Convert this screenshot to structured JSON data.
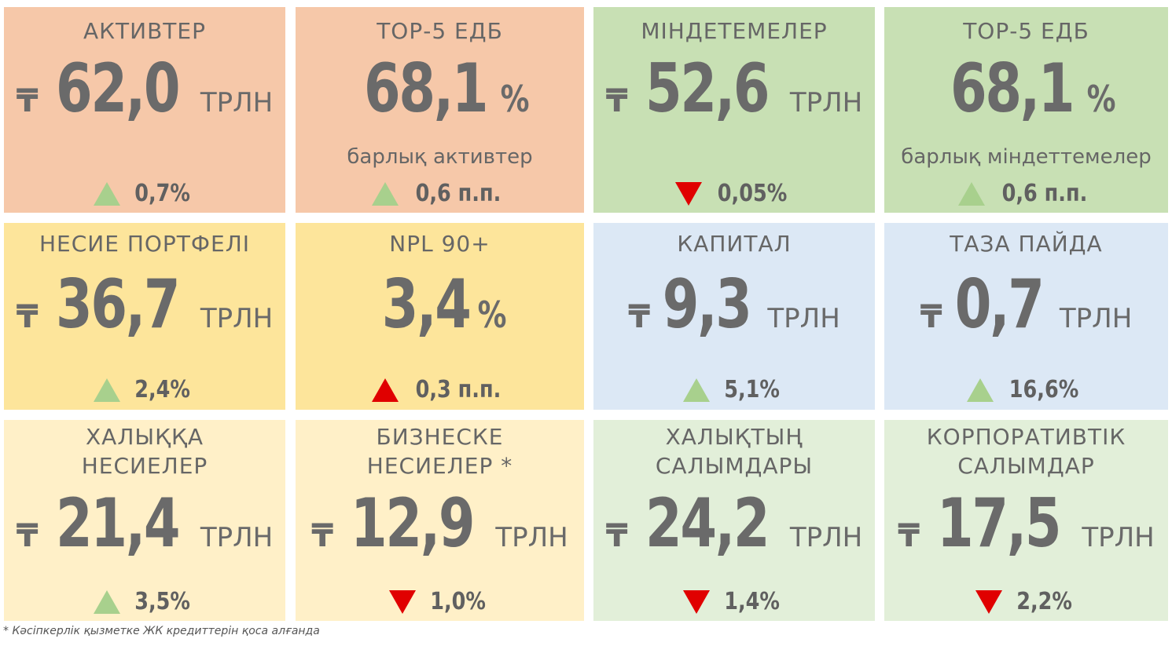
{
  "currency_symbol": "₸",
  "unit_trln": "ТРЛН",
  "percent_sign": "%",
  "cards": [
    {
      "title": "АКТИВТЕР",
      "value": "62,0",
      "change": "0,7%",
      "trend": "up-green"
    },
    {
      "title": "ТОР-5 ЕДБ",
      "value": "68,1",
      "subtitle": "барлық активтер",
      "change": "0,6 п.п.",
      "trend": "up-green"
    },
    {
      "title": "МІНДЕТЕМЕЛЕР",
      "value": "52,6",
      "change": "0,05%",
      "trend": "down-red"
    },
    {
      "title": "ТОР-5 ЕДБ",
      "value": "68,1",
      "subtitle": "барлық міндеттемелер",
      "change": "0,6 п.п.",
      "trend": "up-green"
    },
    {
      "title": "НЕСИЕ ПОРТФЕЛІ",
      "value": "36,7",
      "change": "2,4%",
      "trend": "up-green"
    },
    {
      "title": "NPL 90+",
      "value": "3,4",
      "change": "0,3 п.п.",
      "trend": "up-red"
    },
    {
      "title": "КАПИТАЛ",
      "value": "9,3",
      "change": "5,1%",
      "trend": "up-green"
    },
    {
      "title": "ТАЗА ПАЙДА",
      "value": "0,7",
      "change": "16,6%",
      "trend": "up-green"
    },
    {
      "title_line1": "ХАЛЫҚҚА",
      "title_line2": "НЕСИЕЛЕР",
      "value": "21,4",
      "change": "3,5%",
      "trend": "up-green"
    },
    {
      "title_line1": "БИЗНЕСКЕ",
      "title_line2": "НЕСИЕЛЕР *",
      "value": "12,9",
      "change": "1,0%",
      "trend": "down-red"
    },
    {
      "title_line1": "ХАЛЫҚТЫҢ",
      "title_line2": "САЛЫМДАРЫ",
      "value": "24,2",
      "change": "1,4%",
      "trend": "down-red"
    },
    {
      "title_line1": "КОРПОРАТИВТІК",
      "title_line2": "САЛЫМДАР",
      "value": "17,5",
      "change": "2,2%",
      "trend": "down-red"
    }
  ],
  "colors": {
    "salmon": "#f6c8a9",
    "green": "#c8e0b4",
    "yellow": "#fde59b",
    "blue": "#dce8f5",
    "light_yellow": "#fff0c8",
    "light_green": "#e2efd9",
    "triangle_green": "#a8d08d",
    "triangle_red": "#e00000"
  },
  "footnote": "* Кәсіпкерлік қызметке ЖК кредиттерін қоса алғанда"
}
